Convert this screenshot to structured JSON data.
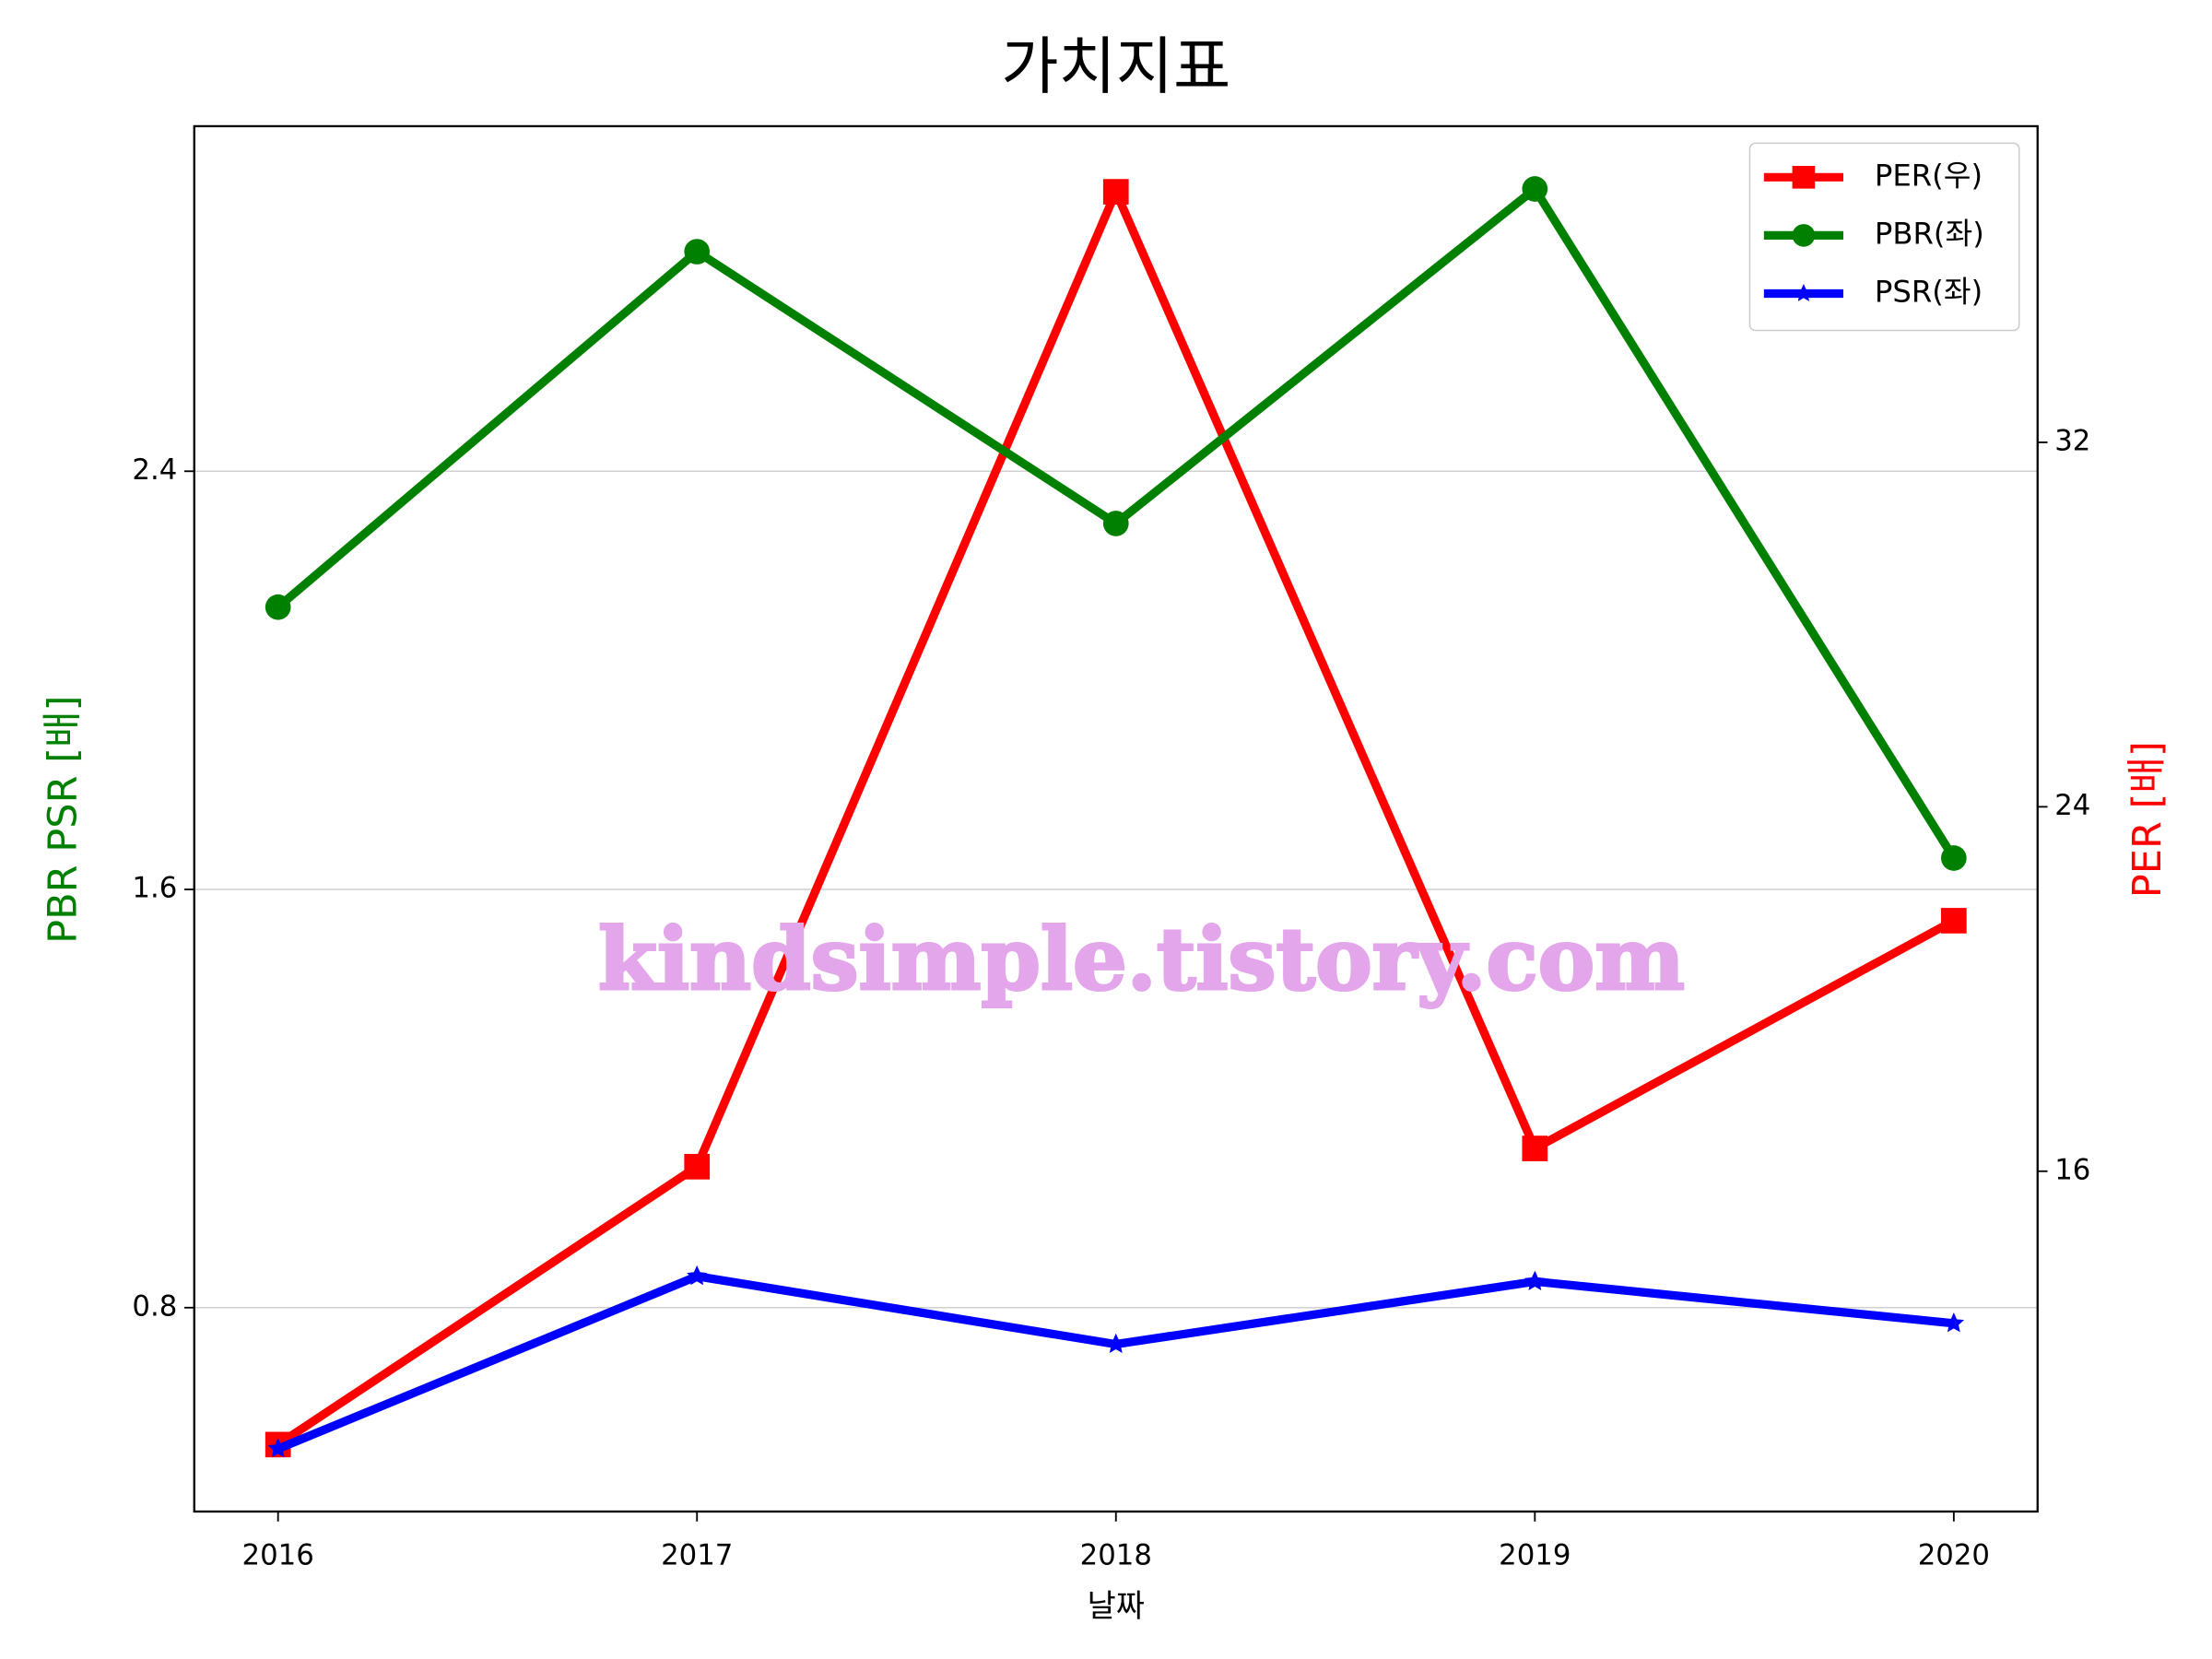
{
  "chart_data": {
    "type": "line",
    "title": "가치지표",
    "x_label": "날짜",
    "y_label": "PBR PSR [배]",
    "y2_label": "PER [배]",
    "annotation": "kindsimple.tistory.com",
    "categories": [
      "2016",
      "2017",
      "2018",
      "2019",
      "2020"
    ],
    "series": [
      {
        "name": "PER(우)",
        "color": "#ff0000",
        "marker": "square",
        "axis": "y2",
        "values": [
          10.0,
          16.1,
          37.5,
          16.5,
          21.5
        ]
      },
      {
        "name": "PBR(좌)",
        "color": "#008000",
        "marker": "circle",
        "axis": "y",
        "values": [
          2.14,
          2.82,
          2.3,
          2.94,
          1.66
        ]
      },
      {
        "name": "PSR(좌)",
        "color": "#0000ff",
        "marker": "star",
        "axis": "y",
        "values": [
          0.53,
          0.86,
          0.73,
          0.85,
          0.77
        ]
      }
    ],
    "ylim": [
      0.41,
      3.06
    ],
    "yticks": [
      0.8,
      1.6,
      2.4
    ],
    "y2lim": [
      8.53,
      38.94
    ],
    "y2ticks": [
      16,
      24,
      32
    ],
    "grid": true,
    "legend": "upper right"
  }
}
